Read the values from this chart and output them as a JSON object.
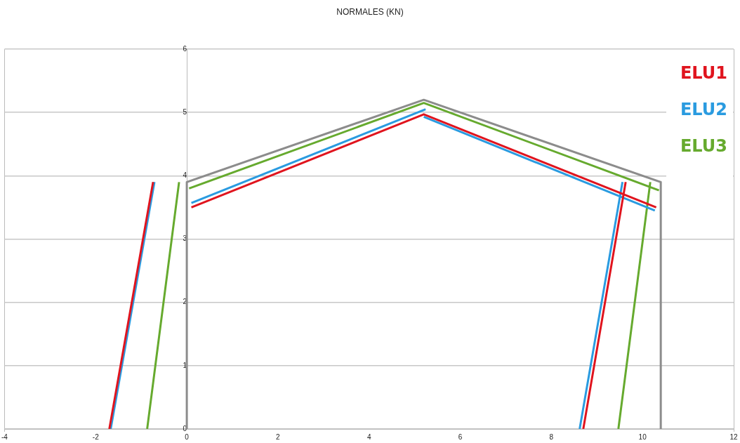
{
  "chart_data": {
    "type": "line",
    "title": "NORMALES (KN)",
    "series": [
      {
        "color": "#8c8c8c",
        "x": [
          0,
          0,
          5.2,
          10.4,
          10.4
        ],
        "values": [
          0,
          3.9,
          5.2,
          3.9,
          0
        ]
      },
      {
        "name": "ELU1",
        "color": "#e0141e",
        "x": [
          -1.7,
          -0.74,
          null,
          0.1,
          5.2,
          10.3,
          null,
          8.7,
          9.63
        ],
        "values": [
          0,
          3.9,
          null,
          3.5,
          4.97,
          3.5,
          null,
          0,
          3.9
        ]
      },
      {
        "name": "ELU2",
        "color": "#2a9be0",
        "x": [
          -1.67,
          -0.71,
          null,
          0.1,
          5.24,
          null,
          5.2,
          10.27,
          null,
          8.62,
          9.56
        ],
        "values": [
          0,
          3.9,
          null,
          3.57,
          5.05,
          null,
          4.93,
          3.45,
          null,
          0,
          3.9
        ]
      },
      {
        "name": "ELU3",
        "color": "#66aa2e",
        "x": [
          -0.87,
          -0.17,
          null,
          0.05,
          5.2,
          10.36,
          null,
          9.47,
          10.17
        ],
        "values": [
          0,
          3.9,
          null,
          3.8,
          5.15,
          3.77,
          null,
          0,
          3.9
        ]
      }
    ],
    "xlim": [
      -4,
      12
    ],
    "xticks": [
      -4,
      -2,
      0,
      2,
      4,
      6,
      8,
      10,
      12
    ],
    "ylim": [
      0,
      6
    ],
    "yticks": [
      0,
      1,
      2,
      3,
      4,
      5,
      6
    ],
    "grid": "y",
    "legend": "top right",
    "marker": "none",
    "line_style": "solid"
  }
}
